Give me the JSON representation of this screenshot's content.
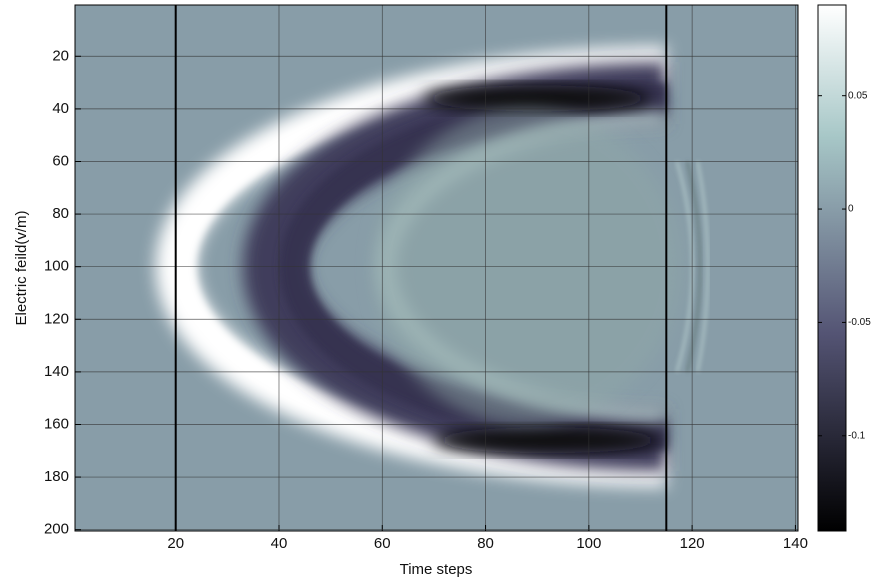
{
  "chart_data": {
    "type": "heatmap",
    "x_label": "Time steps",
    "y_label": "Electric feild(v/m)",
    "xlim": [
      0.5,
      140.5
    ],
    "ylim": [
      0.5,
      200.5
    ],
    "y_reversed": true,
    "xticks": [
      20,
      40,
      60,
      80,
      100,
      120,
      140
    ],
    "yticks": [
      20,
      40,
      60,
      80,
      100,
      120,
      140,
      160,
      180,
      200
    ],
    "grid": true,
    "colormap": "bone",
    "clim": [
      -0.142,
      0.09
    ],
    "colorbar_ticks": [
      0.05,
      0,
      -0.05,
      -0.1
    ],
    "vertical_lines": [
      20,
      115
    ]
  }
}
